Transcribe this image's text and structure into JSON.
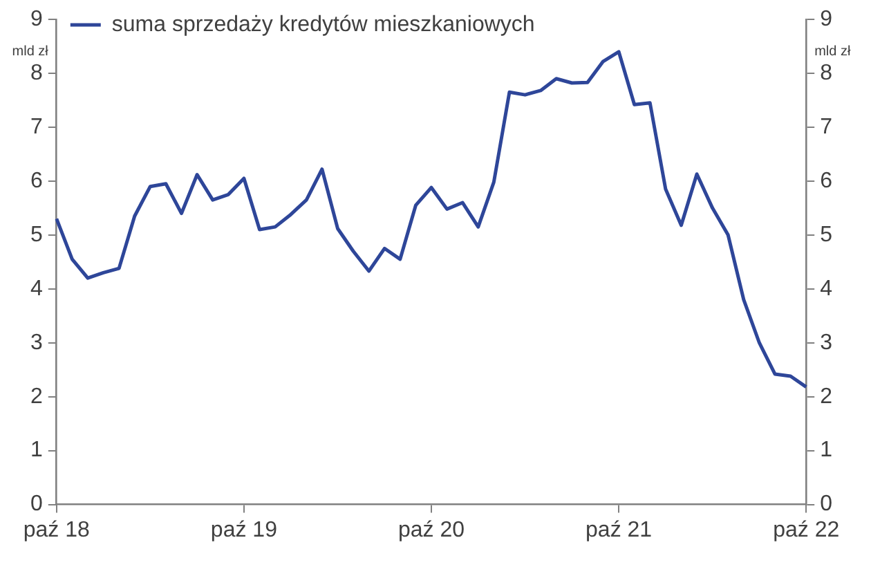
{
  "chart_data": {
    "type": "line",
    "ylabel": "mld zł",
    "y2label": "mld zł",
    "categories": [
      "paź 18",
      null,
      null,
      null,
      null,
      null,
      null,
      null,
      null,
      null,
      null,
      null,
      "paź 19",
      null,
      null,
      null,
      null,
      null,
      null,
      null,
      null,
      null,
      null,
      null,
      "paź 20",
      null,
      null,
      null,
      null,
      null,
      null,
      null,
      null,
      null,
      null,
      null,
      "paź 21",
      null,
      null,
      null,
      null,
      null,
      null,
      null,
      null,
      null,
      null,
      null,
      "paź 22"
    ],
    "series": [
      {
        "name": "suma sprzedaży kredytów mieszkaniowych",
        "color": "#2e4699",
        "values": [
          5.3,
          4.55,
          4.2,
          4.3,
          4.38,
          5.35,
          5.9,
          5.95,
          5.4,
          6.12,
          5.65,
          5.75,
          6.05,
          5.1,
          5.15,
          5.38,
          5.65,
          6.22,
          5.12,
          4.7,
          4.33,
          4.75,
          4.55,
          5.55,
          5.88,
          5.48,
          5.6,
          5.15,
          5.98,
          7.65,
          7.6,
          7.68,
          7.9,
          7.82,
          7.83,
          8.22,
          8.4,
          7.42,
          7.45,
          5.85,
          5.18,
          6.13,
          5.5,
          5.0,
          3.8,
          3.0,
          2.42,
          2.38,
          2.18
        ]
      }
    ],
    "ylim": [
      0,
      9
    ],
    "yticks": [
      0,
      1,
      2,
      3,
      4,
      5,
      6,
      7,
      8,
      9
    ],
    "y2lim": [
      0,
      9
    ],
    "y2ticks": [
      0,
      1,
      2,
      3,
      4,
      5,
      6,
      7,
      8,
      9
    ],
    "grid": false,
    "legend": "top left",
    "marker": "none",
    "line_style": "solid"
  }
}
